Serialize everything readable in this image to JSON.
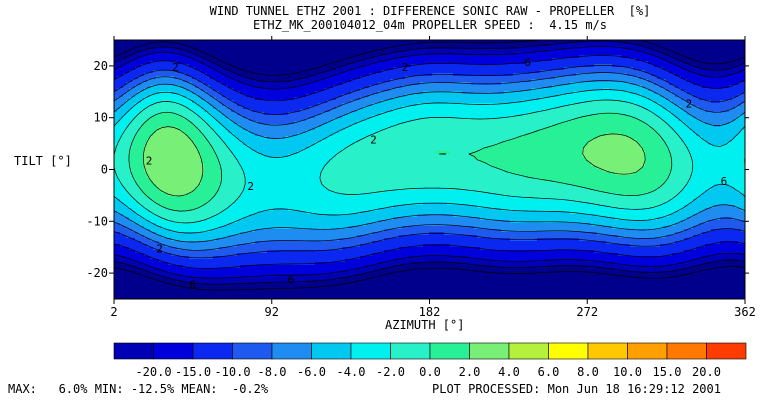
{
  "chart_data": {
    "type": "heatmap",
    "title": "WIND TUNNEL ETHZ 2001 : DIFFERENCE SONIC RAW - PROPELLER  [%]",
    "subtitle": "ETHZ_MK_200104012_04m PROPELLER SPEED :  4.15 m/s",
    "xlabel": "AZIMUTH [°]",
    "ylabel": "TILT [°]",
    "xlim": [
      2,
      362
    ],
    "ylim": [
      -25,
      25
    ],
    "x_ticks": [
      "2",
      "92",
      "182",
      "272",
      "362"
    ],
    "y_ticks": [
      "20",
      "10",
      "0",
      "-10",
      "-20"
    ],
    "x_tick_values": [
      2,
      92,
      182,
      272,
      362
    ],
    "y_tick_values": [
      20,
      10,
      0,
      -10,
      -20
    ],
    "contour_labels": [
      "2",
      "2",
      "2",
      "2",
      "2",
      "6",
      "6",
      "6",
      "6",
      "2",
      "2"
    ],
    "colorbar": {
      "levels": [
        -22,
        -20,
        -18,
        -15,
        -12,
        -10,
        -8,
        -6,
        -4,
        -2,
        0,
        2,
        4,
        6,
        8,
        10,
        15,
        20,
        22
      ],
      "labels": [
        "-20.0",
        "-15.0",
        "-10.0",
        "-8.0",
        "-6.0",
        "-4.0",
        "-2.0",
        "0.0",
        "2.0",
        "4.0",
        "6.0",
        "8.0",
        "10.0",
        "15.0",
        "20.0"
      ],
      "colors": [
        "#00008c",
        "#0000b4",
        "#0000dc",
        "#0a28f0",
        "#1e5af0",
        "#1e8cf0",
        "#00c8f0",
        "#00f0f0",
        "#28f0c8",
        "#28f096",
        "#78f078",
        "#b4f03c",
        "#ffff00",
        "#ffc800",
        "#ffa000",
        "#ff7800",
        "#ff3c00",
        "#ff0000",
        "#b40000"
      ]
    }
  },
  "footer": {
    "stats": "MAX:   6.0% MIN: -12.5% MEAN:  -0.2%",
    "processed": "PLOT PROCESSED: Mon Jun 18 16:29:12 2001"
  }
}
